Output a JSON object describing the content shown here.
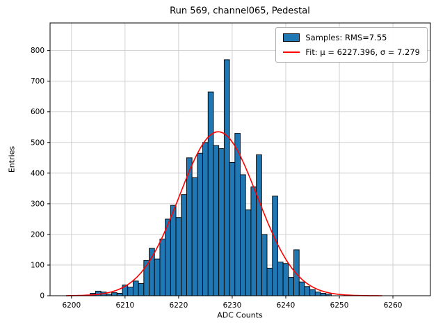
{
  "title": "Run 569, channel065, Pedestal",
  "chart_data": {
    "type": "bar",
    "subtype": "histogram",
    "title": "Run 569, channel065, Pedestal",
    "xlabel": "ADC Counts",
    "ylabel": "Entries",
    "xlim": [
      6196,
      6267
    ],
    "ylim": [
      0,
      890
    ],
    "xticks": [
      6200,
      6210,
      6220,
      6230,
      6240,
      6250,
      6260
    ],
    "yticks": [
      0,
      100,
      200,
      300,
      400,
      500,
      600,
      700,
      800
    ],
    "grid": true,
    "grid_color": "#c6c6c6",
    "bar_color": "#1f77b4",
    "bar_edge_color": "#000000",
    "bin_width": 1,
    "bin_centers": [
      6204,
      6205,
      6206,
      6207,
      6208,
      6209,
      6210,
      6211,
      6212,
      6213,
      6214,
      6215,
      6216,
      6217,
      6218,
      6219,
      6220,
      6221,
      6222,
      6223,
      6224,
      6225,
      6226,
      6227,
      6228,
      6229,
      6230,
      6231,
      6232,
      6233,
      6234,
      6235,
      6236,
      6237,
      6238,
      6239,
      6240,
      6241,
      6242,
      6243,
      6244,
      6245,
      6246,
      6247,
      6248
    ],
    "counts": [
      8,
      15,
      12,
      5,
      10,
      8,
      35,
      28,
      48,
      40,
      115,
      155,
      120,
      185,
      250,
      295,
      255,
      330,
      450,
      385,
      465,
      500,
      665,
      490,
      480,
      770,
      435,
      530,
      395,
      280,
      355,
      460,
      200,
      90,
      325,
      110,
      105,
      60,
      150,
      45,
      30,
      20,
      12,
      8,
      5
    ],
    "fit": {
      "type": "gaussian",
      "mu": 6227.396,
      "sigma": 7.279,
      "amplitude": 535,
      "color": "#ff0000",
      "x_range": [
        6199,
        6258
      ]
    },
    "legend": {
      "position": "upper right",
      "entries": [
        {
          "type": "patch",
          "color": "#1f77b4",
          "label": "Samples: RMS=7.55"
        },
        {
          "type": "line",
          "color": "#ff0000",
          "label": "Fit: μ = 6227.396, σ = 7.279"
        }
      ]
    }
  }
}
